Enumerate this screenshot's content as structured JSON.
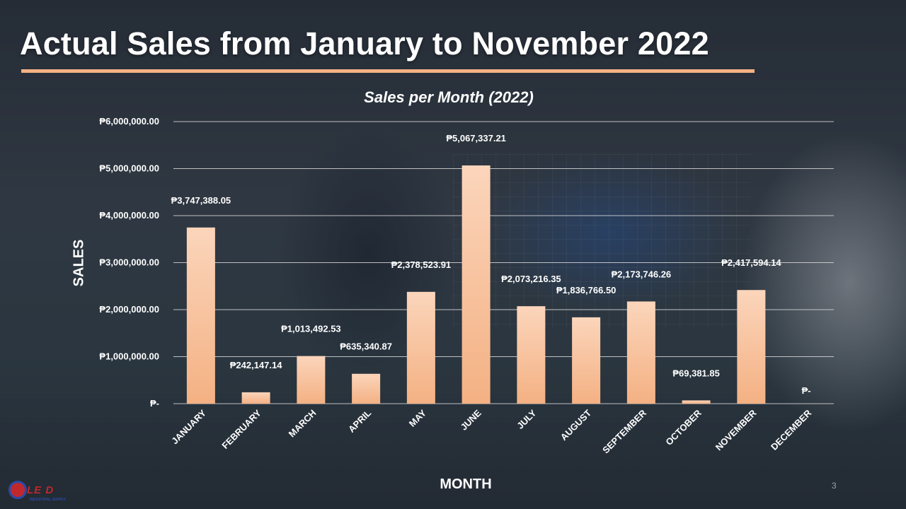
{
  "slide": {
    "title": "Actual Sales from January to November 2022",
    "page_number": "3",
    "logo": {
      "name": "company-logo",
      "text": "LE D",
      "subtext": "INDUSTRIAL SUPPLY"
    }
  },
  "colors": {
    "bar": "#f4b183",
    "bar_top": "#fbd5bb",
    "title_rule": "#f4b183",
    "gridline": "#d9d9d9"
  },
  "chart_data": {
    "type": "bar",
    "title": "Sales per Month (2022)",
    "xlabel": "MONTH",
    "ylabel": "SALES",
    "ylim": [
      0,
      6000000
    ],
    "y_ticks": [
      0,
      1000000,
      2000000,
      3000000,
      4000000,
      5000000,
      6000000
    ],
    "y_tick_labels": [
      "₱-",
      "₱1,000,000.00",
      "₱2,000,000.00",
      "₱3,000,000.00",
      "₱4,000,000.00",
      "₱5,000,000.00",
      "₱6,000,000.00"
    ],
    "grid": true,
    "legend": "none",
    "categories": [
      "JANUARY",
      "FEBRUARY",
      "MARCH",
      "APRIL",
      "MAY",
      "JUNE",
      "JULY",
      "AUGUST",
      "SEPTEMBER",
      "OCTOBER",
      "NOVEMBER",
      "DECEMBER"
    ],
    "values": [
      3747388.05,
      242147.14,
      1013492.53,
      635340.87,
      2378523.91,
      5067337.21,
      2073216.35,
      1836766.5,
      2173746.26,
      69381.85,
      2417594.14,
      0
    ],
    "data_labels": [
      "₱3,747,388.05",
      "₱242,147.14",
      "₱1,013,492.53",
      "₱635,340.87",
      "₱2,378,523.91",
      "₱5,067,337.21",
      "₱2,073,216.35",
      "₱1,836,766.50",
      "₱2,173,746.26",
      "₱69,381.85",
      "₱2,417,594.14",
      "₱-"
    ]
  }
}
